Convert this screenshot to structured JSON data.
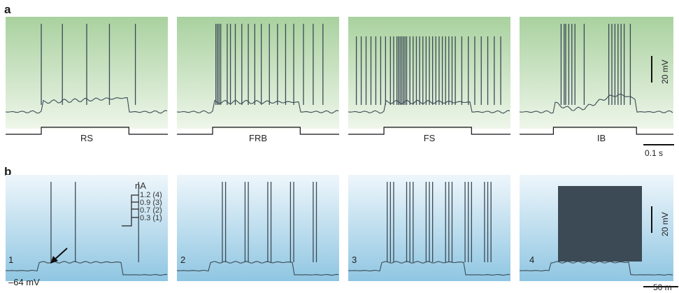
{
  "panel_labels": {
    "a": "a",
    "b": "b"
  },
  "row_a": {
    "cells": [
      {
        "label": "RS",
        "spikes": [
          0.22,
          0.35,
          0.5,
          0.64,
          0.8
        ]
      },
      {
        "label": "FRB",
        "spikes": [
          0.24,
          0.25,
          0.26,
          0.27,
          0.31,
          0.33,
          0.36,
          0.4,
          0.44,
          0.48,
          0.52,
          0.57,
          0.62,
          0.67,
          0.72,
          0.78,
          0.84,
          0.9
        ]
      },
      {
        "label": "FS",
        "spikes": [
          0.05,
          0.08,
          0.11,
          0.14,
          0.17,
          0.2,
          0.23,
          0.26,
          0.28,
          0.3,
          0.31,
          0.32,
          0.33,
          0.34,
          0.35,
          0.36,
          0.38,
          0.4,
          0.42,
          0.44,
          0.46,
          0.48,
          0.5,
          0.52,
          0.54,
          0.56,
          0.58,
          0.6,
          0.62,
          0.64,
          0.66,
          0.7,
          0.74,
          0.78,
          0.82,
          0.86,
          0.9,
          0.94
        ]
      },
      {
        "label": "IB",
        "spikes": [
          0.27,
          0.29,
          0.3,
          0.32,
          0.34,
          0.36,
          0.42,
          0.58,
          0.6,
          0.62,
          0.64,
          0.66,
          0.68,
          0.72
        ]
      }
    ],
    "scale_v": "20 mV",
    "scale_t": "0.1 s"
  },
  "row_b": {
    "cells": [
      {
        "num": "1",
        "spikes": [
          0.28,
          0.43,
          0.82
        ]
      },
      {
        "num": "2",
        "spikes": [
          0.28,
          0.3,
          0.42,
          0.44,
          0.56,
          0.58,
          0.7,
          0.72,
          0.84,
          0.86
        ]
      },
      {
        "num": "3",
        "spikes": [
          0.24,
          0.26,
          0.28,
          0.36,
          0.38,
          0.4,
          0.48,
          0.5,
          0.52,
          0.6,
          0.62,
          0.64,
          0.72,
          0.74,
          0.76,
          0.84,
          0.86,
          0.88
        ]
      },
      {
        "num": "4",
        "dense": true
      }
    ],
    "resting": "–64 mV",
    "current_unit": "nA",
    "current_steps": [
      "1.2 (4)",
      "0.9 (3)",
      "0.7 (2)",
      "0.3 (1)"
    ],
    "scale_v": "20 mV",
    "scale_t": "50 m"
  },
  "colors": {
    "green_top": "#a9d19f",
    "green_bottom": "#eef6ea",
    "blue_top": "#eef6fb",
    "blue_bottom": "#8fc6e2",
    "trace": "#3b4a55"
  }
}
